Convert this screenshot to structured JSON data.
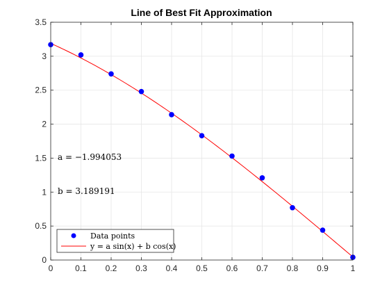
{
  "chart_data": {
    "type": "scatter",
    "title": "Line of Best Fit Approximation",
    "xlabel": "",
    "ylabel": "",
    "xlim": [
      0,
      1
    ],
    "ylim": [
      0,
      3.5
    ],
    "grid": true,
    "x_ticks": [
      0,
      0.1,
      0.2,
      0.3,
      0.4,
      0.5,
      0.6,
      0.7,
      0.8,
      0.9,
      1
    ],
    "x_tick_labels": [
      "0",
      "0.1",
      "0.2",
      "0.3",
      "0.4",
      "0.5",
      "0.6",
      "0.7",
      "0.8",
      "0.9",
      "1"
    ],
    "y_ticks": [
      0,
      0.5,
      1,
      1.5,
      2,
      2.5,
      3,
      3.5
    ],
    "y_tick_labels": [
      "0",
      "0.5",
      "1",
      "1.5",
      "2",
      "2.5",
      "3",
      "3.5"
    ],
    "legend_position": "bottom-left",
    "series": [
      {
        "name": "Data points",
        "kind": "scatter",
        "color": "#0000ff",
        "x": [
          0,
          0.1,
          0.2,
          0.3,
          0.4,
          0.5,
          0.6,
          0.7,
          0.8,
          0.9,
          1
        ],
        "y": [
          3.17,
          3.02,
          2.74,
          2.48,
          2.14,
          1.83,
          1.53,
          1.21,
          0.77,
          0.44,
          0.04
        ]
      },
      {
        "name": "y = a sin(x) + b cos(x)",
        "kind": "line",
        "color": "#ff0000",
        "function": "a*sin(x) + b*cos(x)"
      }
    ],
    "coefficients": {
      "a": -1.994053,
      "b": 3.189191
    },
    "annotations": [
      "a = −1.994053",
      "b = 3.189191"
    ]
  }
}
